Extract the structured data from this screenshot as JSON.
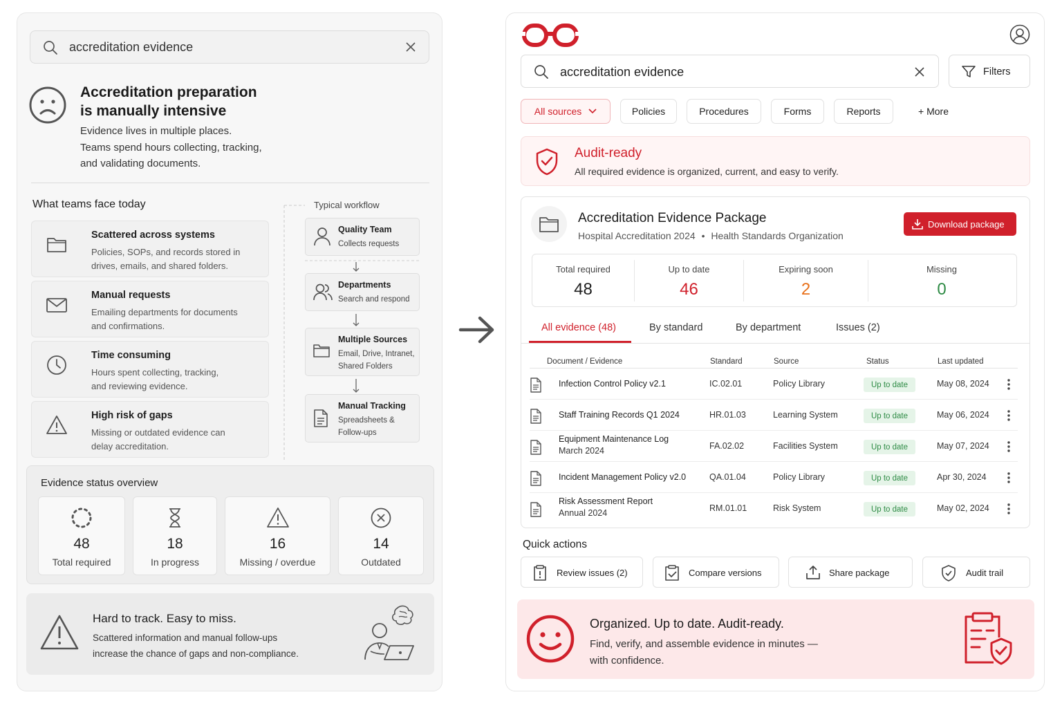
{
  "left": {
    "search": {
      "query": "accreditation evidence"
    },
    "headline": {
      "title_line1": "Accreditation preparation",
      "title_line2": "is manually intensive",
      "desc_line1": "Evidence lives in multiple places.",
      "desc_line2": "Teams spend hours collecting, tracking,",
      "desc_line3": "and validating documents."
    },
    "problems_title": "What teams face today",
    "problems": [
      {
        "title": "Scattered across systems",
        "line1": "Policies, SOPs, and records stored in",
        "line2": "drives, emails, and shared folders.",
        "icon": "folder-icon"
      },
      {
        "title": "Manual requests",
        "line1": "Emailing departments for documents",
        "line2": "and confirmations.",
        "icon": "mail-icon"
      },
      {
        "title": "Time consuming",
        "line1": "Hours spent collecting, tracking,",
        "line2": "and reviewing evidence.",
        "icon": "clock-icon"
      },
      {
        "title": "High risk of gaps",
        "line1": "Missing or outdated evidence can",
        "line2": "delay accreditation.",
        "icon": "warning-icon"
      }
    ],
    "workflow": {
      "title": "Typical workflow",
      "steps": [
        {
          "title": "Quality Team",
          "line1": "Collects requests",
          "line2": "",
          "line3": "",
          "icon": "user-icon"
        },
        {
          "title": "Departments",
          "line1": "Search and respond",
          "line2": "",
          "line3": "",
          "icon": "users-icon"
        },
        {
          "title": "Multiple Sources",
          "line1": "Email, Drive, Intranet,",
          "line2": "Shared Folders",
          "line3": "",
          "icon": "folder-icon"
        },
        {
          "title": "Manual Tracking",
          "line1": "Spreadsheets &",
          "line2": "Follow-ups",
          "line3": "",
          "icon": "document-icon"
        }
      ]
    },
    "overview": {
      "title": "Evidence status overview",
      "stats": [
        {
          "value": "48",
          "label": "Total required",
          "icon": "dotted-circle-icon"
        },
        {
          "value": "18",
          "label": "In progress",
          "icon": "hourglass-icon"
        },
        {
          "value": "16",
          "label": "Missing / overdue",
          "icon": "warning-icon"
        },
        {
          "value": "14",
          "label": "Outdated",
          "icon": "x-circle-icon"
        }
      ]
    },
    "callout": {
      "title": "Hard to track. Easy to miss.",
      "line1": "Scattered information and manual follow-ups",
      "line2": "increase the chance of gaps and non-compliance."
    }
  },
  "right": {
    "search": {
      "query": "accreditation evidence",
      "filters_label": "Filters"
    },
    "chips": [
      "All sources",
      "Policies",
      "Procedures",
      "Forms",
      "Reports",
      "+ More"
    ],
    "banner": {
      "title": "Audit-ready",
      "text": "All required evidence is organized, current, and easy to verify."
    },
    "package": {
      "title": "Accreditation Evidence Package",
      "subtitle_a": "Hospital Accreditation 2024",
      "subtitle_sep": "•",
      "subtitle_b": "Health Standards Organization",
      "download_label": "Download package",
      "metrics": [
        {
          "label": "Total required",
          "value": "48",
          "color": "#1f1f1f"
        },
        {
          "label": "Up to date",
          "value": "46",
          "color": "#d0202b"
        },
        {
          "label": "Expiring soon",
          "value": "2",
          "color": "#e8701a"
        },
        {
          "label": "Missing",
          "value": "0",
          "color": "#2e8b45"
        }
      ]
    },
    "tabs": [
      "All evidence (48)",
      "By standard",
      "By department",
      "Issues (2)"
    ],
    "table": {
      "headers": [
        "Document / Evidence",
        "Standard",
        "Source",
        "Status",
        "Last updated"
      ],
      "rows": [
        {
          "name": "Infection Control Policy v2.1",
          "name2": "",
          "standard": "IC.02.01",
          "source": "Policy Library",
          "status": "Up to date",
          "updated": "May 08, 2024"
        },
        {
          "name": "Staff Training Records Q1 2024",
          "name2": "",
          "standard": "HR.01.03",
          "source": "Learning System",
          "status": "Up to date",
          "updated": "May 06, 2024"
        },
        {
          "name": "Equipment Maintenance Log",
          "name2": "March 2024",
          "standard": "FA.02.02",
          "source": "Facilities System",
          "status": "Up to date",
          "updated": "May 07, 2024"
        },
        {
          "name": "Incident Management Policy v2.0",
          "name2": "",
          "standard": "QA.01.04",
          "source": "Policy Library",
          "status": "Up to date",
          "updated": "Apr 30, 2024"
        },
        {
          "name": "Risk Assessment Report",
          "name2": "Annual 2024",
          "standard": "RM.01.01",
          "source": "Risk System",
          "status": "Up to date",
          "updated": "May 02, 2024"
        }
      ]
    },
    "quick_actions": {
      "title": "Quick actions",
      "items": [
        {
          "label": "Review issues (2)",
          "icon": "review-icon"
        },
        {
          "label": "Compare versions",
          "icon": "compare-icon"
        },
        {
          "label": "Share package",
          "icon": "share-icon"
        },
        {
          "label": "Audit trail",
          "icon": "shield-check-icon"
        }
      ]
    },
    "footer": {
      "title": "Organized. Up to date. Audit-ready.",
      "line1": "Find, verify, and assemble evidence in minutes —",
      "line2": "with confidence."
    }
  },
  "colors": {
    "brand_red": "#d0202b",
    "success_green": "#2e8b45",
    "warning_orange": "#e8701a"
  }
}
